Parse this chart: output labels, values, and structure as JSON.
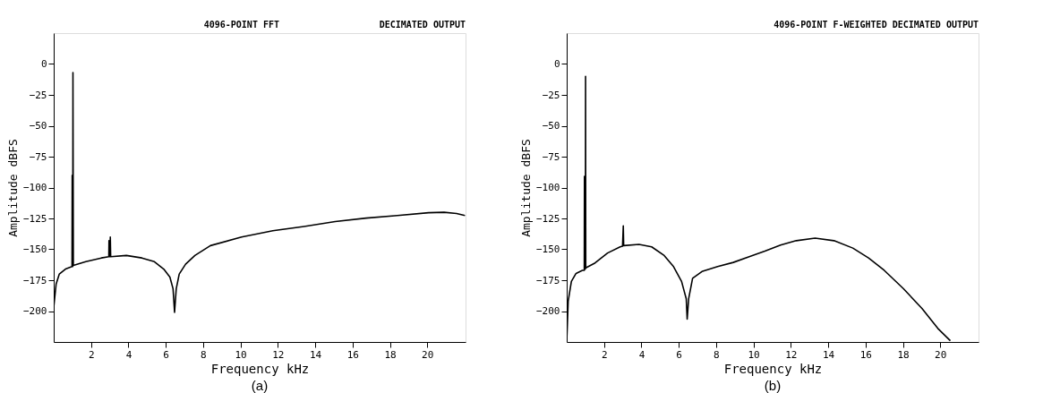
{
  "chart_data": [
    {
      "type": "line",
      "title": "4096-POINT FFT",
      "subtitle": "DECIMATED OUTPUT",
      "xlabel": "Frequency kHz",
      "ylabel": "Amplitude dBFS",
      "annotations": [
        "(a)"
      ],
      "xlim": [
        0,
        22.05
      ],
      "xticks": [
        2,
        4,
        6,
        8,
        10,
        12,
        14,
        16,
        18,
        20
      ],
      "ylim": [
        -225,
        25
      ],
      "yticks": [
        0,
        -25,
        -50,
        -75,
        -100,
        -125,
        -150,
        -175,
        -200
      ],
      "grid": false,
      "legend": false,
      "series": [
        {
          "color": "#000000",
          "x": [
            0,
            0.13,
            0.3,
            0.63,
            0.98,
            0.99,
            1.0,
            1.02,
            1.03,
            1.05,
            1.72,
            2.55,
            2.95,
            2.96,
            2.97,
            3.02,
            3.03,
            3.05,
            3.89,
            4.72,
            5.39,
            5.89,
            6.22,
            6.39,
            6.47,
            6.56,
            6.72,
            7.06,
            7.56,
            8.39,
            10.06,
            11.73,
            13.4,
            15.07,
            16.73,
            18.4,
            20.07,
            20.9,
            21.57,
            22.02
          ],
          "values": [
            -197,
            -178,
            -170,
            -166,
            -164,
            -90,
            -164,
            -164,
            -7,
            -163,
            -160,
            -157,
            -156,
            -143,
            -156,
            -156,
            -140,
            -156,
            -155,
            -157,
            -160,
            -166,
            -172.5,
            -182,
            -201,
            -182,
            -170,
            -162,
            -155,
            -147,
            -140,
            -135,
            -131.5,
            -127.5,
            -124.7,
            -122.6,
            -120.4,
            -120,
            -121,
            -122.6
          ]
        }
      ]
    },
    {
      "type": "line",
      "title": "4096-POINT F-WEIGHTED DECIMATED OUTPUT",
      "xlabel": "Frequency kHz",
      "ylabel": "Amplitude dBFS",
      "annotations": [
        "(b)"
      ],
      "xlim": [
        0,
        22.05
      ],
      "xticks": [
        2,
        4,
        6,
        8,
        10,
        12,
        14,
        16,
        18,
        20
      ],
      "ylim": [
        -225,
        25
      ],
      "yticks": [
        0,
        -25,
        -50,
        -75,
        -100,
        -125,
        -150,
        -175,
        -200
      ],
      "grid": false,
      "legend": false,
      "series": [
        {
          "color": "#000000",
          "x": [
            0.0,
            0.03,
            0.08,
            0.25,
            0.5,
            0.84,
            0.94,
            0.95,
            0.96,
            1.0,
            1.01,
            1.02,
            1.52,
            2.19,
            2.86,
            2.99,
            3.03,
            3.05,
            3.87,
            4.55,
            5.22,
            5.72,
            6.15,
            6.4,
            6.45,
            6.53,
            6.74,
            7.24,
            8.08,
            8.92,
            9.77,
            10.61,
            11.45,
            12.29,
            13.3,
            14.31,
            15.32,
            16.16,
            17.0,
            18.02,
            19.03,
            19.87,
            20.54
          ],
          "values": [
            -224,
            -213,
            -192,
            -176,
            -169.5,
            -167,
            -167,
            -91,
            -166,
            -166,
            -10,
            -165,
            -161,
            -153,
            -148,
            -147.5,
            -131,
            -147,
            -146,
            -148,
            -155,
            -164,
            -176,
            -190,
            -206.5,
            -190,
            -173.5,
            -168,
            -164,
            -160.6,
            -156,
            -151.5,
            -146.6,
            -143,
            -141,
            -143,
            -149,
            -157,
            -167,
            -181.7,
            -198,
            -214,
            -224
          ]
        }
      ]
    }
  ]
}
